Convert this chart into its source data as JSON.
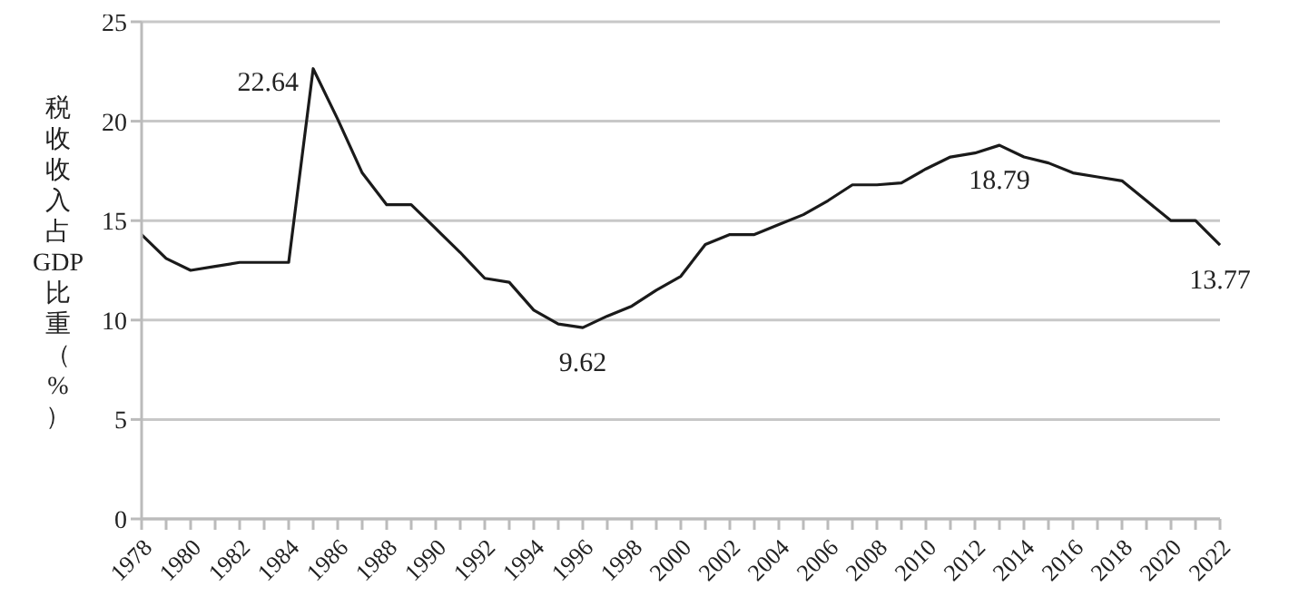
{
  "chart_data": {
    "type": "line",
    "ylabel": "税收收入占GDP比重（%）",
    "categories": [
      "1978",
      null,
      "1980",
      null,
      "1982",
      null,
      "1984",
      null,
      "1986",
      null,
      "1988",
      null,
      "1990",
      null,
      "1992",
      null,
      "1994",
      null,
      "1996",
      null,
      "1998",
      null,
      "2000",
      null,
      "2002",
      null,
      "2004",
      null,
      "2006",
      null,
      "2008",
      null,
      "2010",
      null,
      "2012",
      null,
      "2014",
      null,
      "2016",
      null,
      "2018",
      null,
      "2020",
      null,
      "2022"
    ],
    "series": [
      {
        "color": "#1a1a1a",
        "values": [
          14.3,
          13.1,
          12.5,
          12.7,
          12.9,
          12.9,
          12.9,
          22.64,
          20.1,
          17.4,
          15.8,
          15.8,
          14.6,
          13.4,
          12.1,
          11.9,
          10.5,
          9.8,
          9.62,
          10.2,
          10.7,
          11.5,
          12.2,
          13.8,
          14.3,
          14.3,
          14.8,
          15.3,
          16.0,
          16.8,
          16.8,
          16.9,
          17.6,
          18.2,
          18.4,
          18.79,
          18.2,
          17.9,
          17.4,
          17.2,
          17.0,
          16.0,
          15.0,
          15.0,
          13.77
        ],
        "value_labels": [
          null,
          null,
          null,
          null,
          null,
          null,
          null,
          "22.64",
          null,
          null,
          null,
          null,
          null,
          null,
          null,
          null,
          null,
          null,
          "9.62",
          null,
          null,
          null,
          null,
          null,
          null,
          null,
          null,
          null,
          null,
          null,
          null,
          null,
          null,
          null,
          null,
          "18.79",
          null,
          null,
          null,
          null,
          null,
          null,
          null,
          null,
          "13.77"
        ]
      }
    ],
    "ylim": [
      0,
      25
    ],
    "yticks": [
      0,
      5,
      10,
      15,
      20,
      25
    ],
    "grid": "y",
    "legend": false,
    "marker": "none",
    "line_style": "solid"
  }
}
